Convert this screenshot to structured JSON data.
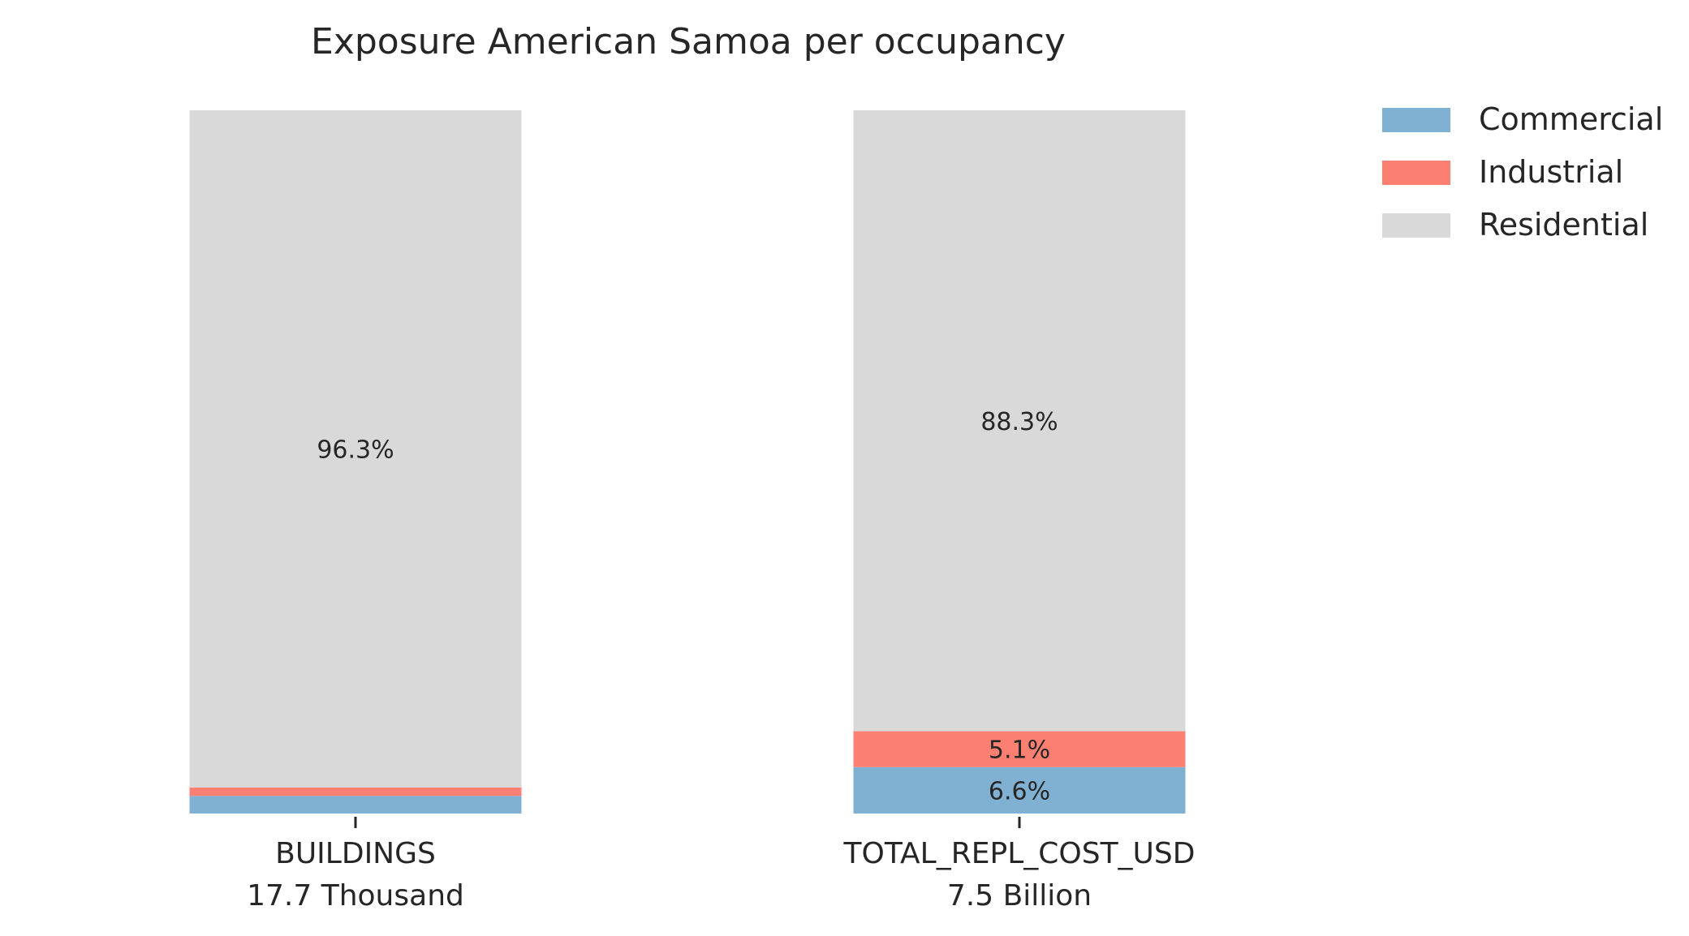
{
  "chart_data": {
    "type": "bar",
    "stacked": true,
    "title": "Exposure American Samoa per occupancy",
    "xlabel": "",
    "ylabel": "",
    "ylim": [
      0,
      100
    ],
    "grid": false,
    "legend_position": "top-right",
    "categories": [
      "BUILDINGS",
      "TOTAL_REPL_COST_USD"
    ],
    "category_sublabels": [
      "17.7 Thousand",
      "7.5 Billion"
    ],
    "series": [
      {
        "name": "Commercial",
        "color": "#80b1d3",
        "values": [
          2.5,
          6.6
        ],
        "labels": [
          "",
          "6.6%"
        ]
      },
      {
        "name": "Industrial",
        "color": "#fb8072",
        "values": [
          1.2,
          5.1
        ],
        "labels": [
          "",
          "5.1%"
        ]
      },
      {
        "name": "Residential",
        "color": "#d9d9d9",
        "values": [
          96.3,
          88.3
        ],
        "labels": [
          "96.3%",
          "88.3%"
        ]
      }
    ]
  }
}
